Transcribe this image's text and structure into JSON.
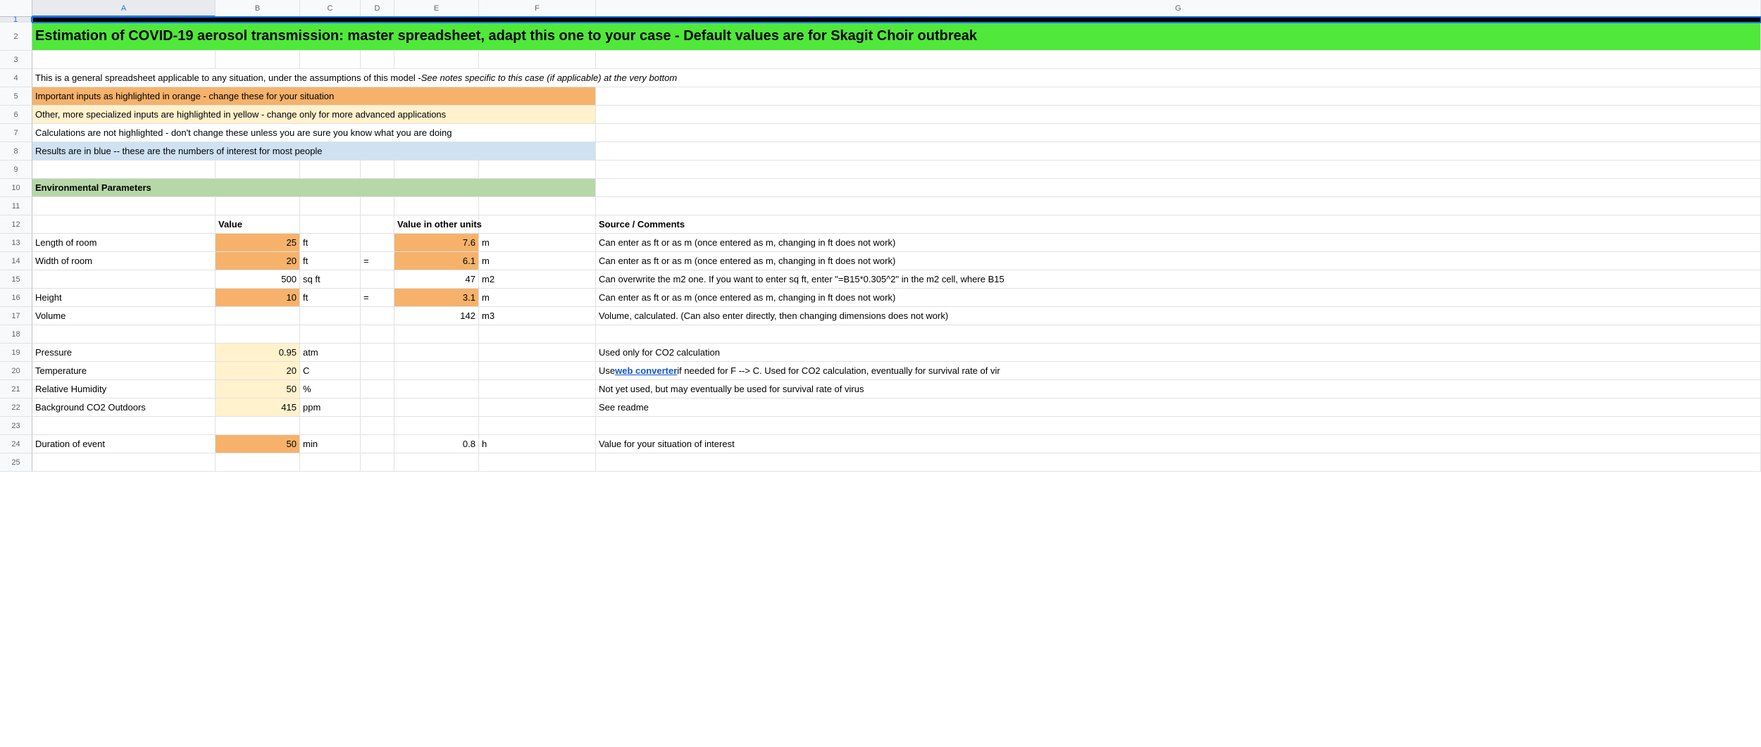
{
  "columns": [
    "A",
    "B",
    "C",
    "D",
    "E",
    "F",
    "G"
  ],
  "row_count": 25,
  "row1_bg": "#000000",
  "title": {
    "text": "Estimation of COVID-19 aerosol transmission: master spreadsheet, adapt this one to your case - Default values are for Skagit Choir outbreak",
    "bg": "#4fe83b",
    "fontsize": 20
  },
  "notes": {
    "general_pre": "This is a general spreadsheet applicable to any situation, under the assumptions of this model - ",
    "general_ital": "See notes specific to this case (if applicable) at the very bottom",
    "orange": "Important inputs as highlighted in orange - change these for your situation",
    "yellow": "Other, more specialized inputs are highlighted in yellow - change only for more advanced applications",
    "calc": "Calculations are not highlighted - don't change these unless you are sure you know what you are doing",
    "blue": "Results are in blue -- these are the numbers of interest for most people"
  },
  "section_header": "Environmental Parameters",
  "headers": {
    "value": "Value",
    "value_other": "Value in other units",
    "source": "Source / Comments"
  },
  "colors": {
    "orange": "#f6b26b",
    "yellow": "#fff2cc",
    "blue": "#cfe2f3",
    "section": "#b6d7a8",
    "link": "#1155cc"
  },
  "rows": {
    "r13": {
      "label": "Length of room",
      "val": "25",
      "unit": "ft",
      "eq": "",
      "val2": "7.6",
      "unit2": "m",
      "comment": "Can enter as ft or as m (once entered as m, changing in ft does not work)",
      "val_bg": "orange",
      "val2_bg": "orange"
    },
    "r14": {
      "label": "Width of room",
      "val": "20",
      "unit": "ft",
      "eq": "=",
      "val2": "6.1",
      "unit2": "m",
      "comment": "Can enter as ft or as m (once entered as m, changing in ft does not work)",
      "val_bg": "orange",
      "val2_bg": "orange"
    },
    "r15": {
      "label": "",
      "val": "500",
      "unit": "sq ft",
      "eq": "",
      "val2": "47",
      "unit2": "m2",
      "comment": "Can overwrite the m2 one. If you want to enter sq ft, enter \"=B15*0.305^2\" in the m2 cell, where B15",
      "val_bg": "",
      "val2_bg": ""
    },
    "r16": {
      "label": "Height",
      "val": "10",
      "unit": "ft",
      "eq": "=",
      "val2": "3.1",
      "unit2": "m",
      "comment": "Can enter as ft or as m (once entered as m, changing in ft does not work)",
      "val_bg": "orange",
      "val2_bg": "orange"
    },
    "r17": {
      "label": "Volume",
      "val": "",
      "unit": "",
      "eq": "",
      "val2": "142",
      "unit2": "m3",
      "comment": "Volume, calculated. (Can also enter directly, then changing dimensions does not work)",
      "val_bg": "",
      "val2_bg": ""
    },
    "r19": {
      "label": "Pressure",
      "val": "0.95",
      "unit": "atm",
      "eq": "",
      "val2": "",
      "unit2": "",
      "comment": "Used only for CO2 calculation",
      "val_bg": "yellow",
      "val2_bg": ""
    },
    "r20": {
      "label": "Temperature",
      "val": "20",
      "unit": "C",
      "eq": "",
      "val2": "",
      "unit2": "",
      "comment_pre": "Use ",
      "link": "web converter",
      "comment_post": " if needed for F --> C. Used for CO2 calculation, eventually for survival rate of vir",
      "val_bg": "yellow",
      "val2_bg": ""
    },
    "r21": {
      "label": "Relative Humidity",
      "val": "50",
      "unit": "%",
      "eq": "",
      "val2": "",
      "unit2": "",
      "comment": "Not yet used, but may eventually be used for survival rate of virus",
      "val_bg": "yellow",
      "val2_bg": ""
    },
    "r22": {
      "label": "Background CO2 Outdoors",
      "val": "415",
      "unit": "ppm",
      "eq": "",
      "val2": "",
      "unit2": "",
      "comment": "See readme",
      "val_bg": "yellow",
      "val2_bg": ""
    },
    "r24": {
      "label": "Duration of event",
      "val": "50",
      "unit": "min",
      "eq": "",
      "val2": "0.8",
      "unit2": "h",
      "comment": "Value for your situation of interest",
      "val_bg": "orange",
      "val2_bg": ""
    }
  }
}
